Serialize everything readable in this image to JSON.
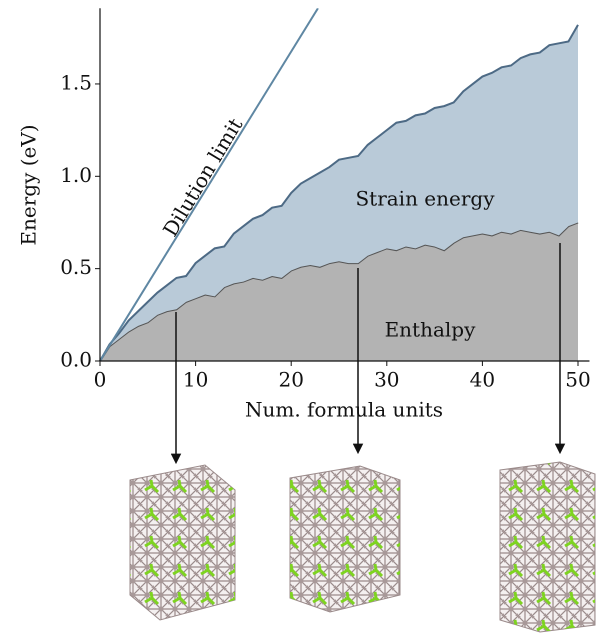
{
  "chart_data": {
    "type": "area",
    "xlabel": "Num. formula units",
    "ylabel": "Energy (eV)",
    "x": [
      0,
      1,
      2,
      3,
      4,
      5,
      6,
      7,
      8,
      9,
      10,
      11,
      12,
      13,
      14,
      15,
      16,
      17,
      18,
      19,
      20,
      21,
      22,
      23,
      24,
      25,
      26,
      27,
      28,
      29,
      30,
      31,
      32,
      33,
      34,
      35,
      36,
      37,
      38,
      39,
      40,
      41,
      42,
      43,
      44,
      45,
      46,
      47,
      48,
      49,
      50
    ],
    "series": [
      {
        "name": "Enthalpy",
        "color": "#b3b3b3",
        "line_color": "#555555",
        "values": [
          0,
          0.08,
          0.12,
          0.16,
          0.19,
          0.21,
          0.25,
          0.27,
          0.28,
          0.32,
          0.34,
          0.36,
          0.35,
          0.4,
          0.42,
          0.43,
          0.45,
          0.44,
          0.46,
          0.45,
          0.49,
          0.51,
          0.52,
          0.51,
          0.53,
          0.54,
          0.53,
          0.53,
          0.57,
          0.59,
          0.61,
          0.6,
          0.62,
          0.61,
          0.63,
          0.62,
          0.6,
          0.64,
          0.67,
          0.68,
          0.69,
          0.68,
          0.7,
          0.69,
          0.71,
          0.7,
          0.69,
          0.7,
          0.68,
          0.73,
          0.75
        ]
      },
      {
        "name": "Strain energy",
        "color": "#b9cad8",
        "line_color": "#4d6a85",
        "values": [
          0,
          0.01,
          0.03,
          0.06,
          0.08,
          0.11,
          0.12,
          0.14,
          0.17,
          0.14,
          0.19,
          0.21,
          0.26,
          0.22,
          0.27,
          0.3,
          0.32,
          0.35,
          0.37,
          0.39,
          0.42,
          0.45,
          0.47,
          0.51,
          0.52,
          0.55,
          0.57,
          0.58,
          0.6,
          0.62,
          0.64,
          0.69,
          0.68,
          0.72,
          0.71,
          0.75,
          0.78,
          0.76,
          0.79,
          0.82,
          0.85,
          0.88,
          0.89,
          0.91,
          0.93,
          0.96,
          0.98,
          1.01,
          1.04,
          1.0,
          1.07
        ]
      }
    ],
    "lines": [
      {
        "name": "Dilution limit",
        "color": "#5f87a3",
        "x": [
          0,
          22.8
        ],
        "values": [
          0,
          1.91
        ]
      }
    ],
    "xlim": [
      0,
      51.2
    ],
    "ylim": [
      0,
      1.91
    ],
    "xticks": [
      0,
      10,
      20,
      30,
      40,
      50
    ],
    "yticks": [
      {
        "value": 0,
        "label": "0.0"
      },
      0.5,
      {
        "value": 1,
        "label": "1.0"
      },
      1.5
    ]
  }
}
